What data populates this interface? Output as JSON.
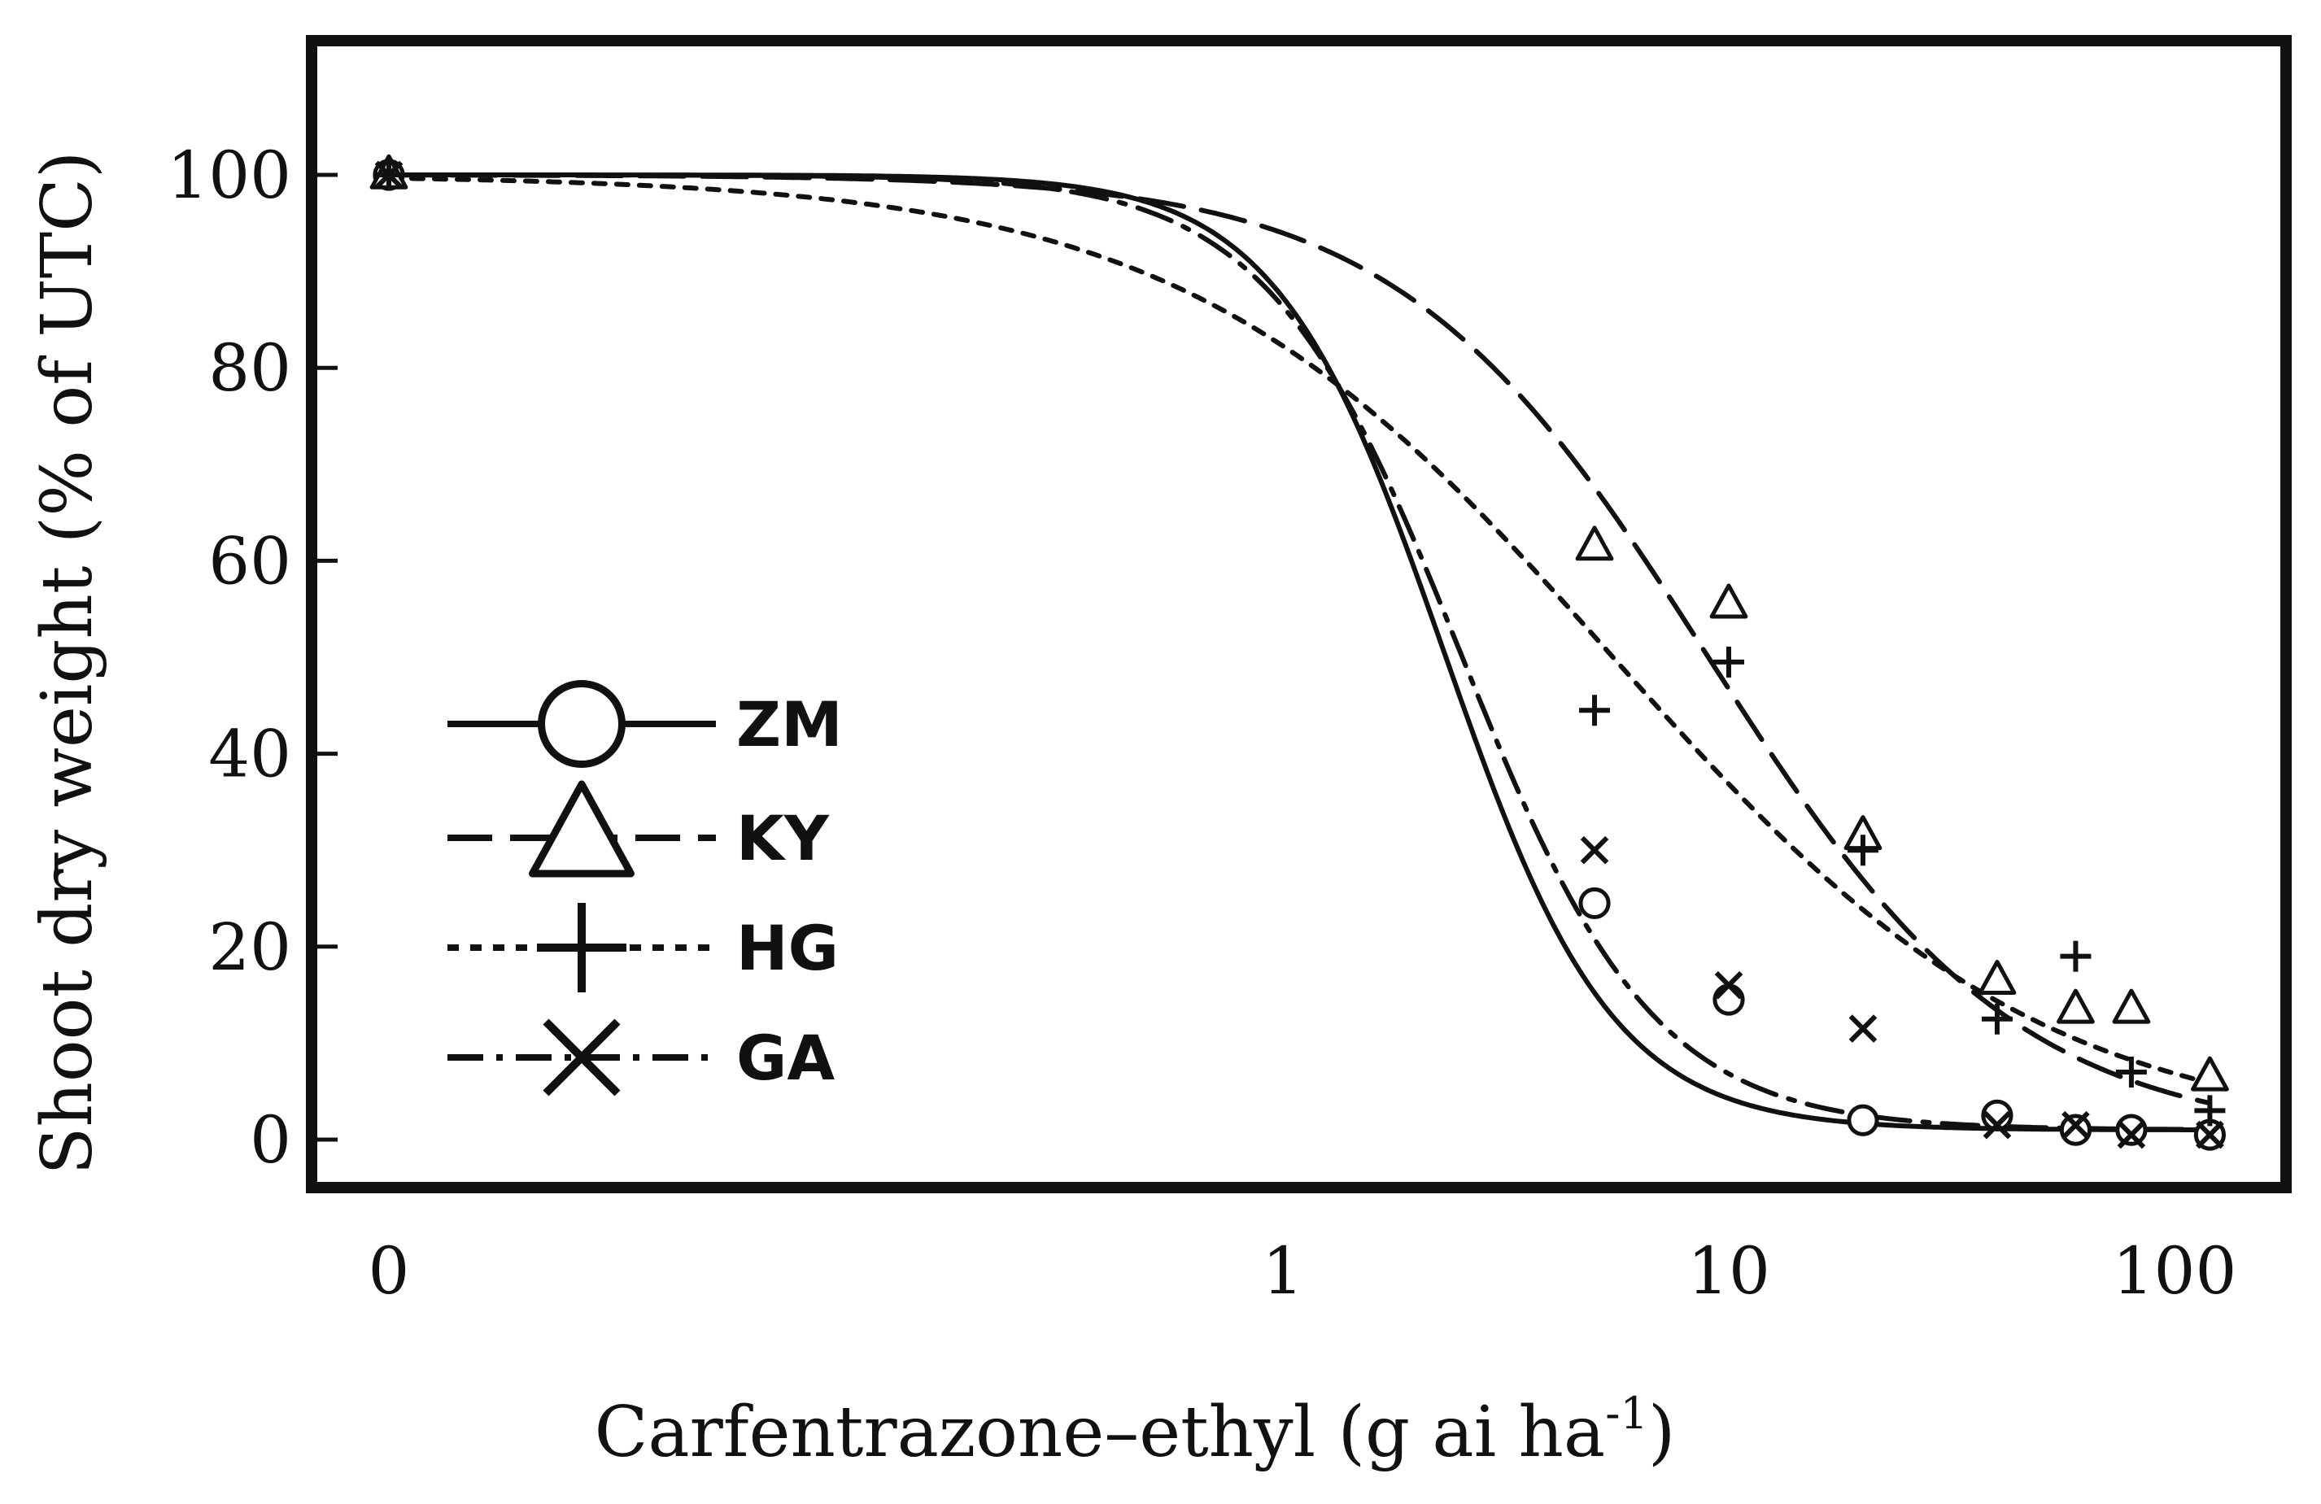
{
  "chart_data": {
    "type": "line",
    "title": "",
    "xlabel": "Carfentrazone–ethyl (g ai ha",
    "xlabel_sup": "-1",
    "xlabel_close": ")",
    "ylabel": "Shoot dry weight (% of UTC)",
    "x_scale": "log",
    "x_ticks": [
      0,
      1,
      10,
      100
    ],
    "x_tick_labels": [
      "0",
      "1",
      "10",
      "100"
    ],
    "y_ticks": [
      0,
      20,
      40,
      60,
      80,
      100
    ],
    "y_tick_labels": [
      "0",
      "20",
      "40",
      "60",
      "80",
      "100"
    ],
    "ylim": [
      -5,
      115
    ],
    "legend_position": "left",
    "series": [
      {
        "name": "ZM",
        "line_style": "solid",
        "marker": "circle",
        "fit": {
          "top": 100,
          "bottom": 1,
          "ed50": 2.3,
          "slope": 2.3
        },
        "points": [
          [
            0,
            100
          ],
          [
            5,
            24.5
          ],
          [
            10,
            14.5
          ],
          [
            20,
            2
          ],
          [
            40,
            2.5
          ],
          [
            60,
            1
          ],
          [
            80,
            1
          ],
          [
            120,
            0.5
          ]
        ]
      },
      {
        "name": "KY",
        "line_style": "dashed",
        "marker": "triangle",
        "fit": {
          "top": 100,
          "bottom": 0,
          "ed50": 9,
          "slope": 1.25
        },
        "points": [
          [
            0,
            100
          ],
          [
            5,
            61.5
          ],
          [
            10,
            55.5
          ],
          [
            20,
            31.5
          ],
          [
            40,
            16.5
          ],
          [
            60,
            13.5
          ],
          [
            80,
            13.5
          ],
          [
            120,
            6.5
          ]
        ]
      },
      {
        "name": "HG",
        "line_style": "dotted",
        "marker": "plus",
        "fit": {
          "top": 100,
          "bottom": 0,
          "ed50": 5.5,
          "slope": 0.9
        },
        "points": [
          [
            0,
            100
          ],
          [
            5,
            44.5
          ],
          [
            10,
            49.5
          ],
          [
            20,
            30
          ],
          [
            40,
            12.5
          ],
          [
            60,
            19
          ],
          [
            80,
            7
          ],
          [
            120,
            3
          ]
        ]
      },
      {
        "name": "GA",
        "line_style": "dash-dot",
        "marker": "cross",
        "fit": {
          "top": 100,
          "bottom": 1,
          "ed50": 2.5,
          "slope": 2.0
        },
        "points": [
          [
            0,
            100
          ],
          [
            5,
            30
          ],
          [
            10,
            16
          ],
          [
            20,
            11.5
          ],
          [
            40,
            1.5
          ],
          [
            60,
            1.5
          ],
          [
            80,
            0.5
          ],
          [
            120,
            0.5
          ]
        ]
      }
    ]
  }
}
